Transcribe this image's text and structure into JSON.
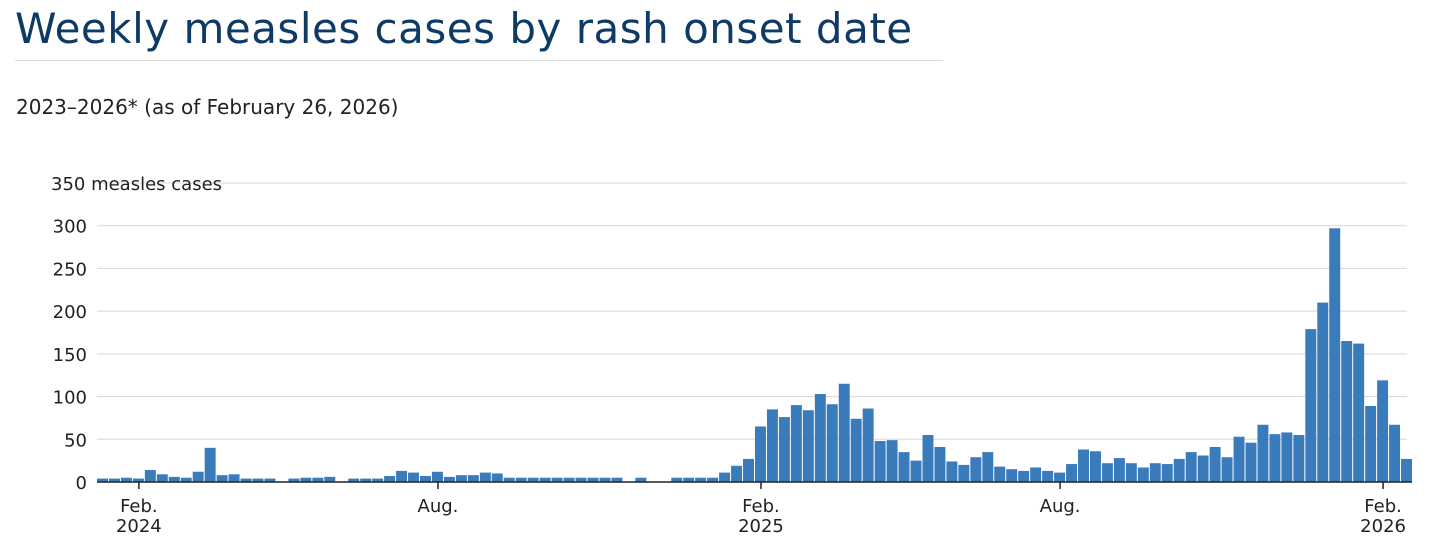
{
  "title": "Weekly measles cases by rash onset date",
  "subtitle": "2023–2026* (as of February 26, 2026)",
  "colors": {
    "bar": "#3a7bbb",
    "title": "#0e3a66",
    "grid": "#d8d8d8",
    "axis": "#222222"
  },
  "chart_data": {
    "type": "bar",
    "title": "Weekly measles cases by rash onset date",
    "subtitle": "2023–2026* (as of February 26, 2026)",
    "ylabel": "measles cases",
    "ylim": [
      0,
      350
    ],
    "yticks": [
      0,
      50,
      100,
      150,
      200,
      250,
      300,
      350
    ],
    "ytick_labels": [
      "0",
      "50",
      "100",
      "150",
      "200",
      "250",
      "300",
      "350 measles cases"
    ],
    "grid": true,
    "x_ticks": [
      {
        "at": 3,
        "label": [
          "Feb.",
          "2024"
        ]
      },
      {
        "at": 28,
        "label": [
          "Aug."
        ]
      },
      {
        "at": 55,
        "label": [
          "Feb.",
          "2025"
        ]
      },
      {
        "at": 80,
        "label": [
          "Aug."
        ]
      },
      {
        "at": 107,
        "label": [
          "Feb.",
          "2026"
        ]
      }
    ],
    "series": [
      {
        "values": [
          4,
          4,
          5,
          4,
          14,
          9,
          6,
          5,
          12,
          40,
          8,
          9,
          4,
          4,
          4,
          0,
          4,
          5,
          5,
          6,
          0,
          4,
          4,
          4,
          7,
          13,
          11,
          7,
          12,
          6,
          8,
          8,
          11,
          10,
          5,
          5,
          5,
          5,
          5,
          5,
          5,
          5,
          5,
          5,
          0,
          5,
          0,
          0,
          5,
          5,
          5,
          5,
          11,
          19,
          27,
          65,
          85,
          76,
          90,
          84,
          103,
          91,
          115,
          74,
          86,
          48,
          49,
          35,
          25,
          55,
          41,
          24,
          20,
          29,
          35,
          18,
          15,
          13,
          17,
          13,
          11,
          21,
          38,
          36,
          22,
          28,
          22,
          17,
          22,
          21,
          27,
          35,
          31,
          41,
          29,
          53,
          46,
          67,
          56,
          58,
          55,
          179,
          210,
          297,
          165,
          162,
          89,
          119,
          67,
          27
        ]
      }
    ]
  }
}
